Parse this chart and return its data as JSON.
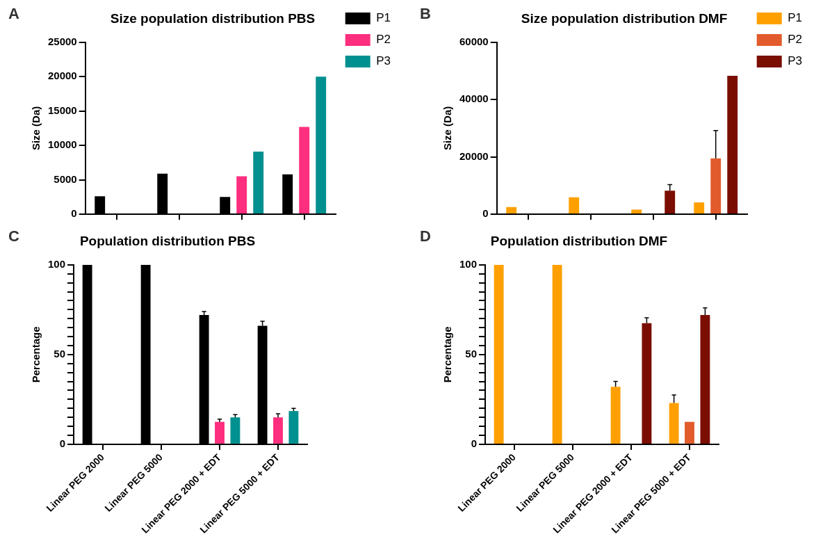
{
  "chart_data": [
    {
      "type": "bar",
      "title": "Size population distribution PBS",
      "ylabel": "Size (Da)",
      "annotations": [
        "A"
      ],
      "categories": [
        null,
        null,
        null,
        null
      ],
      "series": [
        {
          "name": "P1",
          "color": "#000000",
          "values": [
            2600,
            5900,
            2500,
            5800
          ]
        },
        {
          "name": "P2",
          "color": "#fe2e7e",
          "values": [
            null,
            null,
            5500,
            12700
          ]
        },
        {
          "name": "P3",
          "color": "#00908f",
          "values": [
            null,
            null,
            9100,
            20000
          ]
        }
      ],
      "ylim": [
        0,
        25000
      ],
      "yticks": [
        0,
        5000,
        10000,
        15000,
        20000,
        25000
      ],
      "grid": false,
      "legend": "top right",
      "tick_labels": "y"
    },
    {
      "type": "bar",
      "title": "Size population distribution DMF",
      "ylabel": "Size (Da)",
      "annotations": [
        "B"
      ],
      "categories": [
        null,
        null,
        null,
        null
      ],
      "series": [
        {
          "name": "P1",
          "color": "#ffa000",
          "values": [
            2500,
            5900,
            1600,
            4100
          ]
        },
        {
          "name": "P2",
          "color": "#e25b2c",
          "values": [
            null,
            null,
            null,
            19500
          ],
          "errors": [
            null,
            null,
            null,
            [
              19500,
              29200
            ]
          ]
        },
        {
          "name": "P3",
          "color": "#7b0e02",
          "values": [
            null,
            null,
            8200,
            48300
          ],
          "errors": [
            null,
            null,
            [
              8200,
              10300
            ],
            null
          ]
        }
      ],
      "ylim": [
        0,
        60000
      ],
      "yticks": [
        0,
        20000,
        40000,
        60000
      ],
      "grid": false,
      "legend": "top right",
      "tick_labels": "y"
    },
    {
      "type": "bar",
      "title": "Population distribution PBS",
      "ylabel": "Percentage",
      "annotations": [
        "C"
      ],
      "categories": [
        "Linear PEG 2000",
        "Linear PEG 5000",
        "Linear PEG 2000 + EDT",
        "Linear PEG 5000 + EDT"
      ],
      "series": [
        {
          "color": "#000000",
          "values": [
            100,
            100,
            72,
            66
          ],
          "errors": [
            null,
            null,
            [
              72,
              74
            ],
            [
              66,
              68.5
            ]
          ]
        },
        {
          "color": "#fe2e7e",
          "values": [
            null,
            null,
            12.5,
            15
          ],
          "errors": [
            null,
            null,
            [
              12.5,
              14
            ],
            [
              15,
              17
            ]
          ]
        },
        {
          "color": "#00908f",
          "values": [
            null,
            null,
            15,
            18.5
          ],
          "errors": [
            null,
            null,
            [
              15,
              16.5
            ],
            [
              18.5,
              20
            ]
          ]
        }
      ],
      "ylim": [
        0,
        100
      ],
      "yticks": [
        0,
        {
          "value": 5,
          "label": null
        },
        {
          "value": 10,
          "label": null
        },
        {
          "value": 15,
          "label": null
        },
        {
          "value": 20,
          "label": null
        },
        {
          "value": 25,
          "label": null
        },
        {
          "value": 30,
          "label": null
        },
        {
          "value": 35,
          "label": null
        },
        {
          "value": 40,
          "label": null
        },
        {
          "value": 45,
          "label": null
        },
        50,
        {
          "value": 55,
          "label": null
        },
        {
          "value": 60,
          "label": null
        },
        {
          "value": 65,
          "label": null
        },
        {
          "value": 70,
          "label": null
        },
        {
          "value": 75,
          "label": null
        },
        {
          "value": 80,
          "label": null
        },
        {
          "value": 85,
          "label": null
        },
        {
          "value": 90,
          "label": null
        },
        {
          "value": 95,
          "label": null
        },
        100
      ],
      "grid": false
    },
    {
      "type": "bar",
      "title": "Population distribution DMF",
      "ylabel": "Percentage",
      "annotations": [
        "D"
      ],
      "categories": [
        "Linear PEG 2000",
        "Linear PEG 5000",
        "Linear PEG 2000 + EDT",
        "Linear PEG 5000 + EDT"
      ],
      "series": [
        {
          "color": "#ffa000",
          "values": [
            100,
            100,
            32,
            23
          ],
          "errors": [
            null,
            null,
            [
              32,
              35
            ],
            [
              23,
              27.5
            ]
          ]
        },
        {
          "color": "#e25b2c",
          "values": [
            null,
            null,
            null,
            12.5
          ]
        },
        {
          "color": "#7b0e02",
          "values": [
            null,
            null,
            67.5,
            72
          ],
          "errors": [
            null,
            null,
            [
              67.5,
              70.5
            ],
            [
              72,
              76
            ]
          ]
        }
      ],
      "ylim": [
        0,
        100
      ],
      "yticks": [
        0,
        {
          "value": 5,
          "label": null
        },
        {
          "value": 10,
          "label": null
        },
        {
          "value": 15,
          "label": null
        },
        {
          "value": 20,
          "label": null
        },
        {
          "value": 25,
          "label": null
        },
        {
          "value": 30,
          "label": null
        },
        {
          "value": 35,
          "label": null
        },
        {
          "value": 40,
          "label": null
        },
        {
          "value": 45,
          "label": null
        },
        50,
        {
          "value": 55,
          "label": null
        },
        {
          "value": 60,
          "label": null
        },
        {
          "value": 65,
          "label": null
        },
        {
          "value": 70,
          "label": null
        },
        {
          "value": 75,
          "label": null
        },
        {
          "value": 80,
          "label": null
        },
        {
          "value": 85,
          "label": null
        },
        {
          "value": 90,
          "label": null
        },
        {
          "value": 95,
          "label": null
        },
        100
      ],
      "grid": false
    }
  ]
}
